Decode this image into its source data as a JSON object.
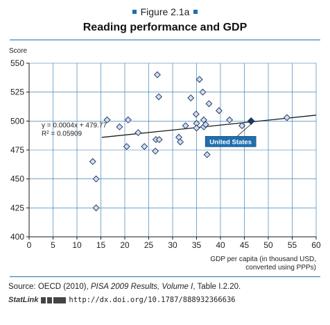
{
  "figure": {
    "label": "Figure 2.1a",
    "title": "Reading performance and GDP"
  },
  "chart_data": {
    "type": "scatter",
    "title": "Reading performance and GDP",
    "ylabel": "Score",
    "xlabel_line1": "GDP per capita (in thousand USD,",
    "xlabel_line2": "converted using PPPs)",
    "xlim": [
      0,
      60
    ],
    "ylim": [
      400,
      550
    ],
    "xticks": [
      0,
      5,
      10,
      15,
      20,
      25,
      30,
      35,
      40,
      45,
      50,
      55,
      60
    ],
    "yticks": [
      400,
      425,
      450,
      475,
      500,
      525,
      550
    ],
    "grid": true,
    "points": [
      {
        "x": 13.3,
        "y": 465
      },
      {
        "x": 14.0,
        "y": 450
      },
      {
        "x": 14.0,
        "y": 425
      },
      {
        "x": 16.3,
        "y": 501
      },
      {
        "x": 18.9,
        "y": 495
      },
      {
        "x": 20.4,
        "y": 478
      },
      {
        "x": 20.7,
        "y": 501
      },
      {
        "x": 22.8,
        "y": 490
      },
      {
        "x": 24.1,
        "y": 478
      },
      {
        "x": 26.4,
        "y": 474
      },
      {
        "x": 26.5,
        "y": 484
      },
      {
        "x": 27.2,
        "y": 484
      },
      {
        "x": 26.8,
        "y": 540
      },
      {
        "x": 27.1,
        "y": 521
      },
      {
        "x": 31.3,
        "y": 486
      },
      {
        "x": 31.6,
        "y": 482
      },
      {
        "x": 32.7,
        "y": 496
      },
      {
        "x": 33.8,
        "y": 520
      },
      {
        "x": 34.9,
        "y": 506
      },
      {
        "x": 35.0,
        "y": 498
      },
      {
        "x": 35.0,
        "y": 494
      },
      {
        "x": 35.6,
        "y": 536
      },
      {
        "x": 36.3,
        "y": 525
      },
      {
        "x": 36.5,
        "y": 501
      },
      {
        "x": 36.5,
        "y": 495
      },
      {
        "x": 36.9,
        "y": 497
      },
      {
        "x": 37.2,
        "y": 471
      },
      {
        "x": 37.6,
        "y": 515
      },
      {
        "x": 39.7,
        "y": 509
      },
      {
        "x": 41.9,
        "y": 501
      },
      {
        "x": 44.5,
        "y": 496
      },
      {
        "x": 53.9,
        "y": 503
      }
    ],
    "highlight": {
      "x": 46.4,
      "y": 500,
      "label": "United States"
    },
    "trendline": {
      "slope": 0.0004,
      "intercept": 479.77,
      "x_range": [
        15.2,
        60
      ],
      "equation_text": "y = 0.0004x + 479.77",
      "r2_text": "R² = 0.05909"
    },
    "colors": {
      "marker_fill": "#d6dcec",
      "marker_edge": "#1f3d6b",
      "highlight_fill": "#1a3a66",
      "label_bg": "#1f6fae",
      "grid": "#1f6fae",
      "axis": "#1a1a1a"
    }
  },
  "footer": {
    "source_prefix": "Source: OECD (2010), ",
    "source_italic": "PISA 2009 Results, Volume I",
    "source_suffix": ", Table I.2.20.",
    "statlink_brand": "StatLink",
    "statlink_url": "http://dx.doi.org/10.1787/888932366636"
  }
}
